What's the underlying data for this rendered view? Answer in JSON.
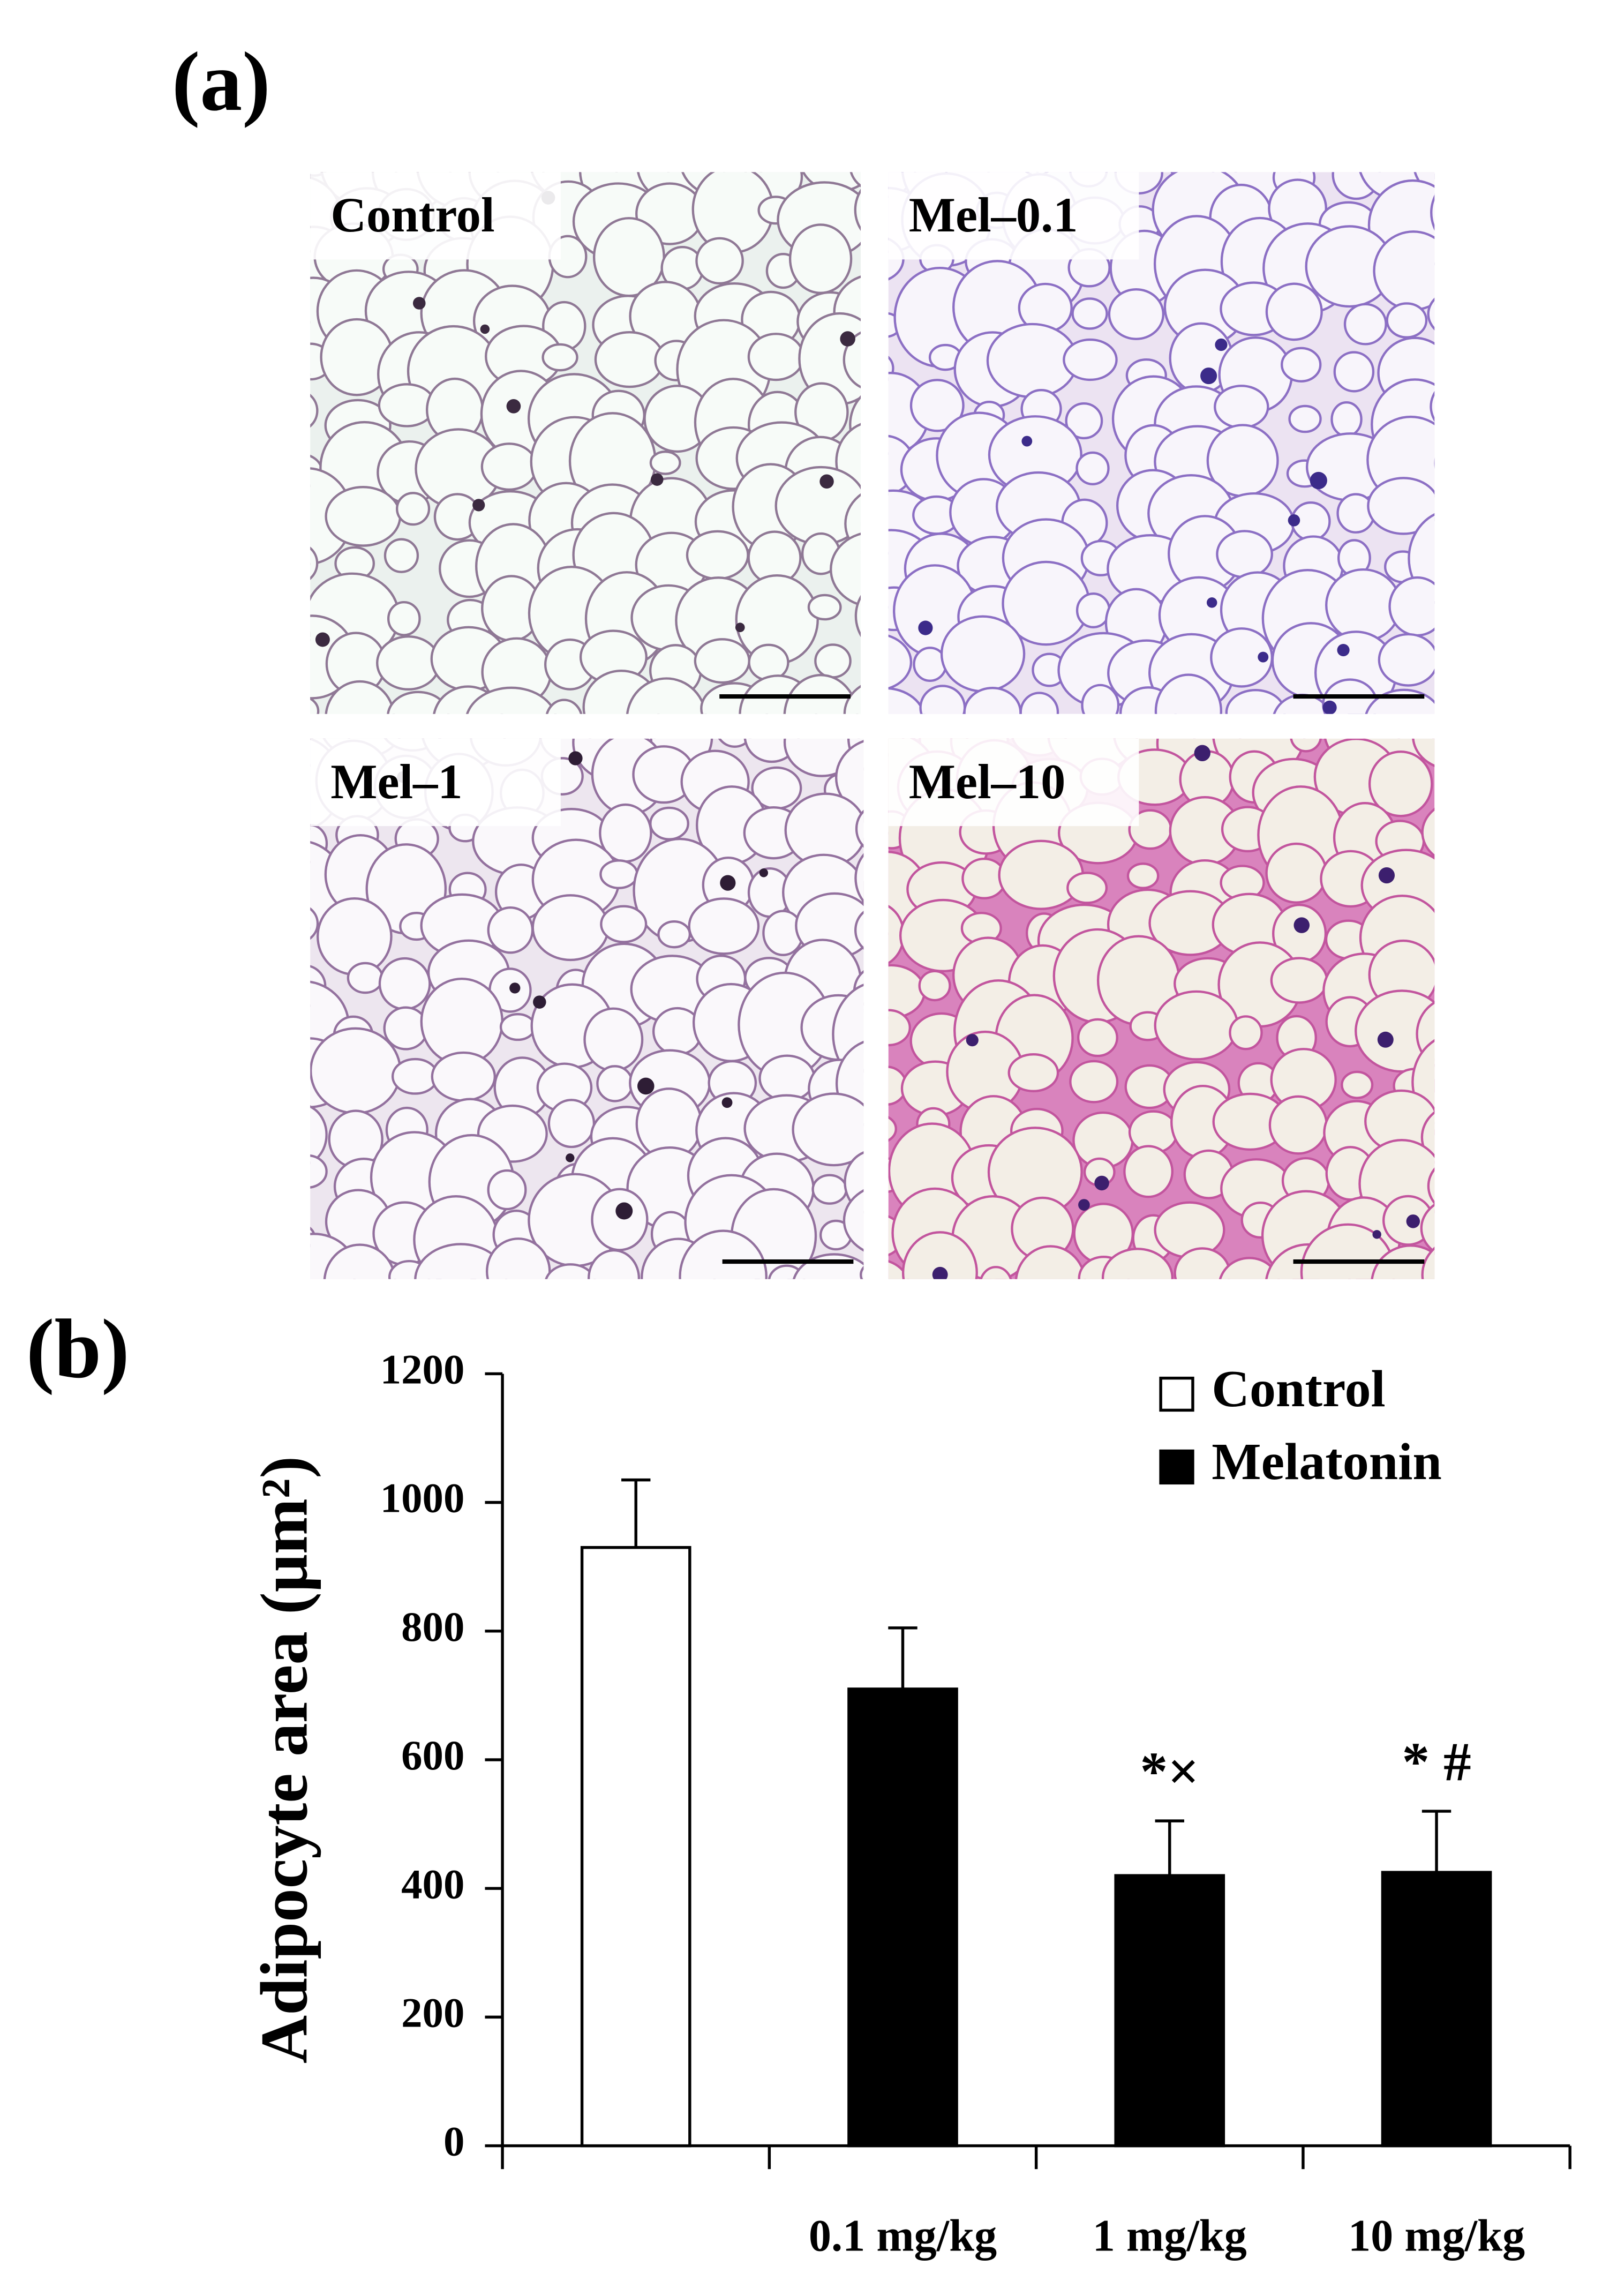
{
  "panel_a": {
    "label": "(a)",
    "images": [
      "Control",
      "Mel–0.1",
      "Mel–1",
      "Mel–10"
    ]
  },
  "chart_data": {
    "type": "bar",
    "panel_label": "(b)",
    "y_label": "Adipocyte area  (μm²)",
    "categories": [
      null,
      "0.1 mg/kg",
      "1 mg/kg",
      "10 mg/kg"
    ],
    "series": [
      {
        "name": "Control",
        "color": "#ffffff",
        "values": [
          930,
          null,
          null,
          null
        ],
        "errors": [
          105,
          null,
          null,
          null
        ]
      },
      {
        "name": "Melatonin",
        "color": "#000000",
        "values": [
          null,
          710,
          420,
          425
        ],
        "errors": [
          null,
          95,
          85,
          95
        ]
      }
    ],
    "annotations": [
      null,
      null,
      "*×",
      "* #"
    ],
    "ylim": [
      0,
      1200
    ],
    "yticks": [
      0,
      200,
      400,
      600,
      800,
      1000,
      1200
    ],
    "grid": false,
    "legend": "top-right"
  }
}
